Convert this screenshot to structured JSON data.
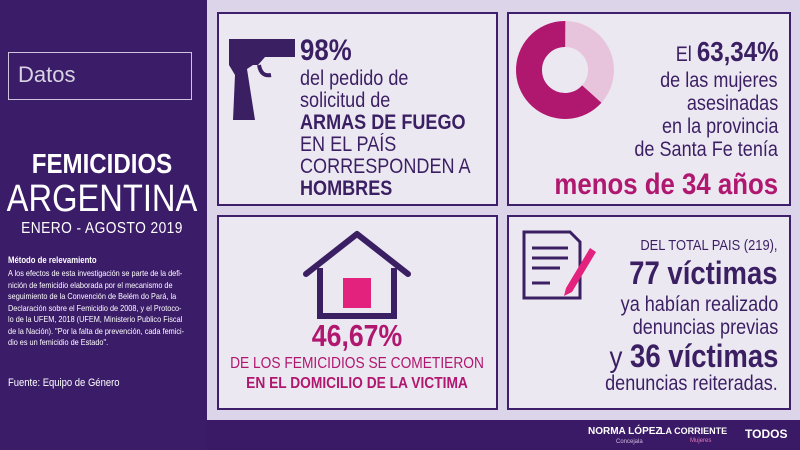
{
  "sidebar": {
    "label": "Datos",
    "title": "FEMICIDIOS",
    "subtitle": "ARGENTINA",
    "period": "ENERO - AGOSTO 2019",
    "method_heading": "Método de relevamiento",
    "method_lines": [
      "A los efectos de esta investigación se parte de la defi-",
      "nición de femicidio elaborada por el mecanismo de",
      "seguimiento de la Convención de Belém do Pará, la",
      "Declaración sobre el Femicidio de 2008, y el Protoco-",
      "lo de la UFEM, 2018 (UFEM, Ministerio Publico Fiscal",
      "de la Nación). \"Por la falta de prevención, cada femici-",
      "dio es un femicidio de Estado\"."
    ],
    "source": "Fuente: Equipo de Género"
  },
  "cards": [
    {
      "lines": [
        "98%",
        "del pedido de",
        "solicitud de",
        "ARMAS DE FUEGO",
        "EN EL PAÍS",
        "CORRESPONDEN A",
        "HOMBRES"
      ]
    },
    {
      "prefix": "El",
      "donut": {
        "value": 63.34,
        "label": "63,34%"
      },
      "lines": [
        "de las mujeres",
        "asesinadas",
        "en la provincia",
        "de Santa Fe tenía",
        "menos de 34 años"
      ]
    },
    {
      "lines": [
        "46,67%",
        "DE LOS FEMICIDIOS SE COMETIERON",
        "EN EL DOMICILIO DE LA VICTIMA"
      ]
    },
    {
      "lines": [
        "DEL TOTAL PAIS (219),",
        "77 víctimas",
        "ya habían realizado",
        "denuncias previas",
        "y",
        "36 víctimas",
        "denuncias reiteradas."
      ]
    }
  ],
  "footer": {
    "logos": [
      "NORMA LÓPEZ",
      "Concejala",
      "LA CORRIENTE",
      "Mujeres",
      "TODOS"
    ]
  }
}
